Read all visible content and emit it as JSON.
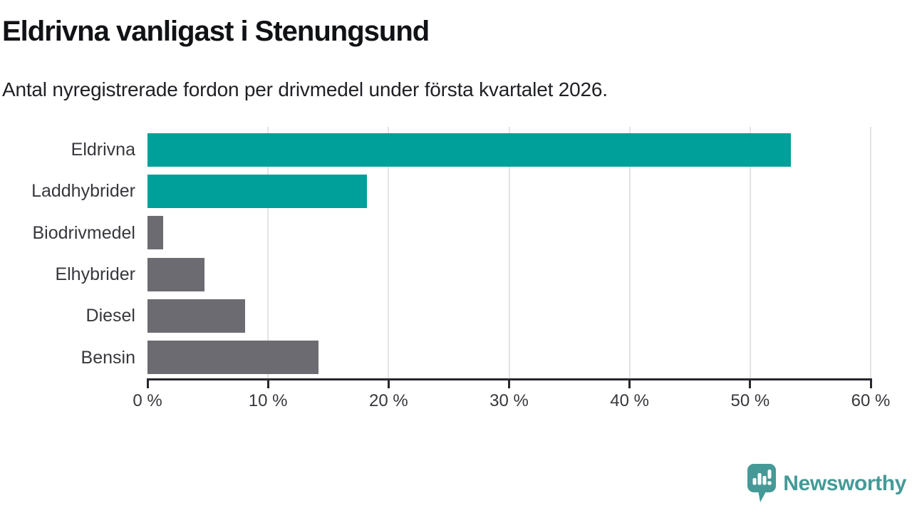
{
  "header": {
    "title": "Eldrivna vanligast i Stenungsund",
    "subtitle": "Antal nyregistrerade fordon per drivmedel under första kvartalet 2026."
  },
  "chart_data": {
    "type": "bar",
    "orientation": "horizontal",
    "title": "Eldrivna vanligast i Stenungsund",
    "subtitle": "Antal nyregistrerade fordon per drivmedel under första kvartalet 2026.",
    "categories": [
      "Eldrivna",
      "Laddhybrider",
      "Biodrivmedel",
      "Elhybrider",
      "Diesel",
      "Bensin"
    ],
    "values": [
      53.4,
      18.2,
      1.3,
      4.7,
      8.1,
      14.2
    ],
    "unit": "%",
    "bar_colors": [
      "#00a09a",
      "#00a09a",
      "#6b6b71",
      "#6b6b71",
      "#6b6b71",
      "#6b6b71"
    ],
    "xlim": [
      0,
      60
    ],
    "x_ticks": [
      0,
      10,
      20,
      30,
      40,
      50,
      60
    ],
    "x_tick_labels": [
      "0 %",
      "10 %",
      "20 %",
      "30 %",
      "40 %",
      "50 %",
      "60 %"
    ],
    "grid": "vertical-gridlines",
    "legend": "none",
    "colors": {
      "accent_teal": "#00a09a",
      "neutral_gray": "#6b6b71",
      "gridline": "#e4e4e7",
      "axis": "#27282d",
      "title_text": "#111216",
      "label_text": "#37383d"
    }
  },
  "footer": {
    "brand": "Newsworthy",
    "brand_color": "#459a97",
    "logo_icon": "speech-bubble-bar-chart-icon"
  }
}
